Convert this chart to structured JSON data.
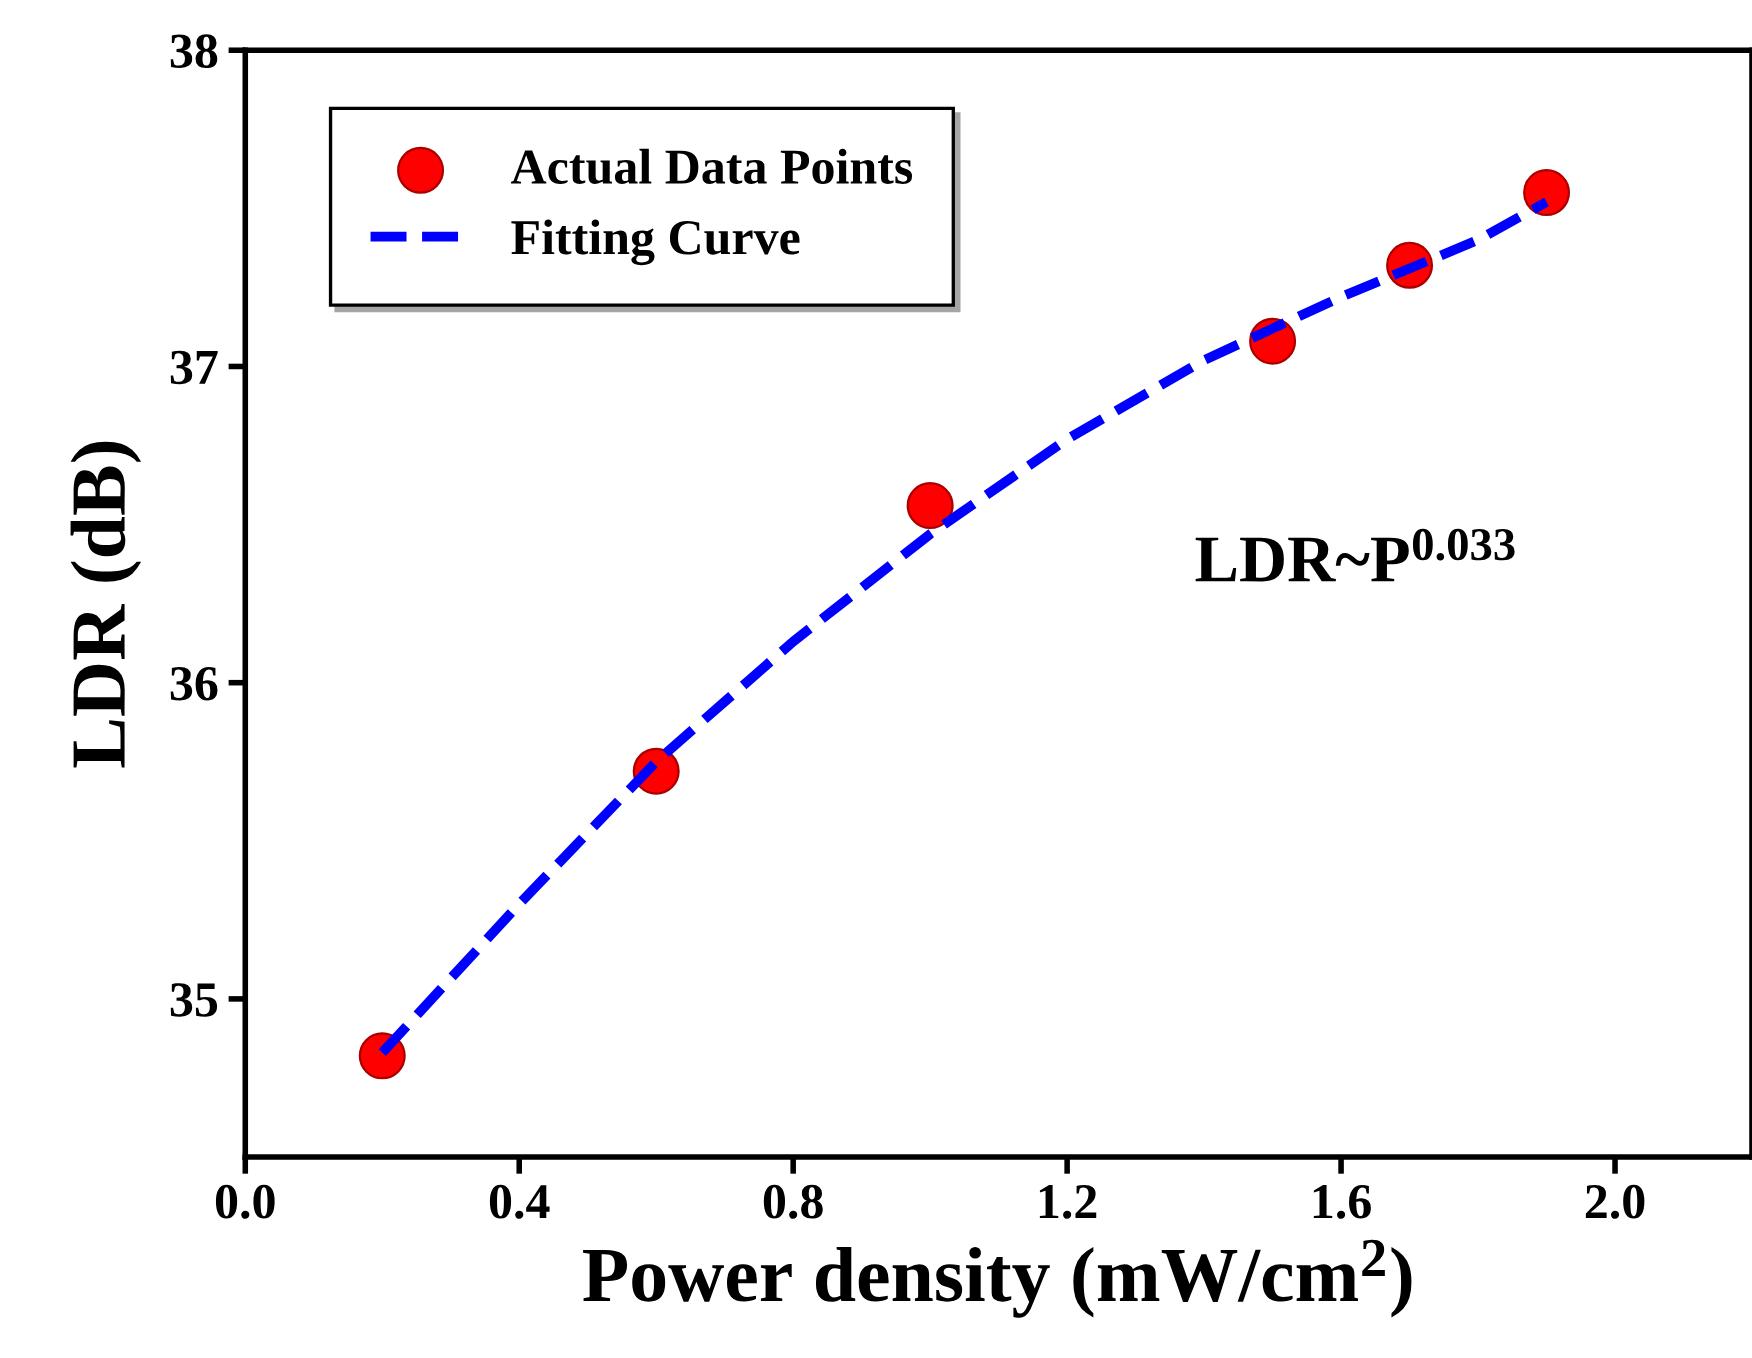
{
  "chart_data": {
    "type": "scatter",
    "xlabel": "Power density (mW/cm$^{2}$)",
    "ylabel": "LDR (dB)",
    "xlim": [
      0.0,
      2.2
    ],
    "xticks": [
      "0.0",
      0.4,
      0.8,
      1.2,
      1.6,
      "2.0"
    ],
    "ylim": [
      34.5,
      38
    ],
    "yticks": [
      35,
      36,
      37,
      38
    ],
    "series": [
      {
        "name": "Actual Data Points",
        "color": "#ff0000",
        "marker": "circle",
        "x": [
          0.2,
          0.6,
          1.0,
          1.5,
          1.7,
          1.9
        ],
        "values": [
          34.82,
          35.72,
          36.56,
          37.08,
          37.32,
          37.55
        ]
      },
      {
        "name": "Fitting Curve",
        "type": "line",
        "color": "#0000ff",
        "line_style": "dashed",
        "marker": "none",
        "x": [
          0.2,
          0.4,
          0.6,
          0.8,
          1.0,
          1.2,
          1.4,
          1.6,
          1.8,
          1.9
        ],
        "values": [
          34.83,
          35.3,
          35.75,
          36.13,
          36.47,
          36.77,
          37.02,
          37.22,
          37.4,
          37.52
        ]
      }
    ],
    "annotations": [
      "LDR~P$^{0.033}$"
    ],
    "legend": "top left",
    "grid": false
  }
}
